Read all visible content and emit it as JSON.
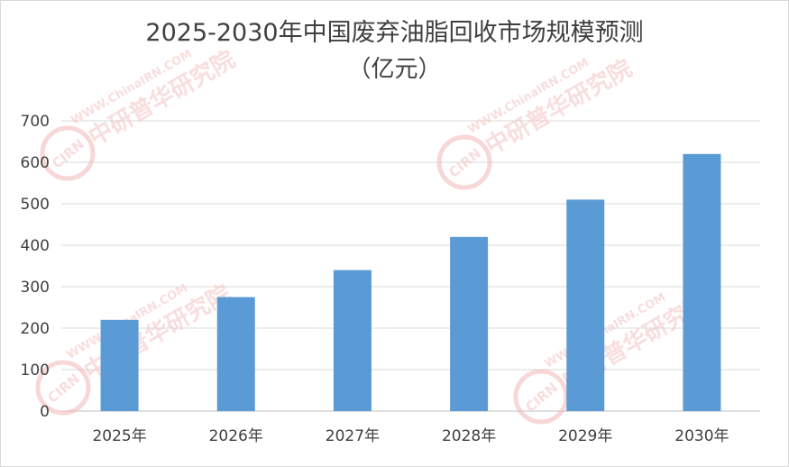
{
  "chart_data": {
    "type": "bar",
    "title": "2025-2030年中国废弃油脂回收市场规模预测",
    "subtitle": "（亿元）",
    "categories": [
      "2025年",
      "2026年",
      "2027年",
      "2028年",
      "2029年",
      "2030年"
    ],
    "values": [
      220,
      275,
      340,
      420,
      510,
      620
    ],
    "ylim": [
      0,
      700
    ],
    "yticks": [
      0,
      100,
      200,
      300,
      400,
      500,
      600,
      700
    ],
    "grid": true,
    "bar_color": "#5b9bd5"
  },
  "watermark": {
    "brand": "中研普华研究院",
    "url": "WWW.ChinaIRN.COM",
    "logo": "CIRN"
  }
}
